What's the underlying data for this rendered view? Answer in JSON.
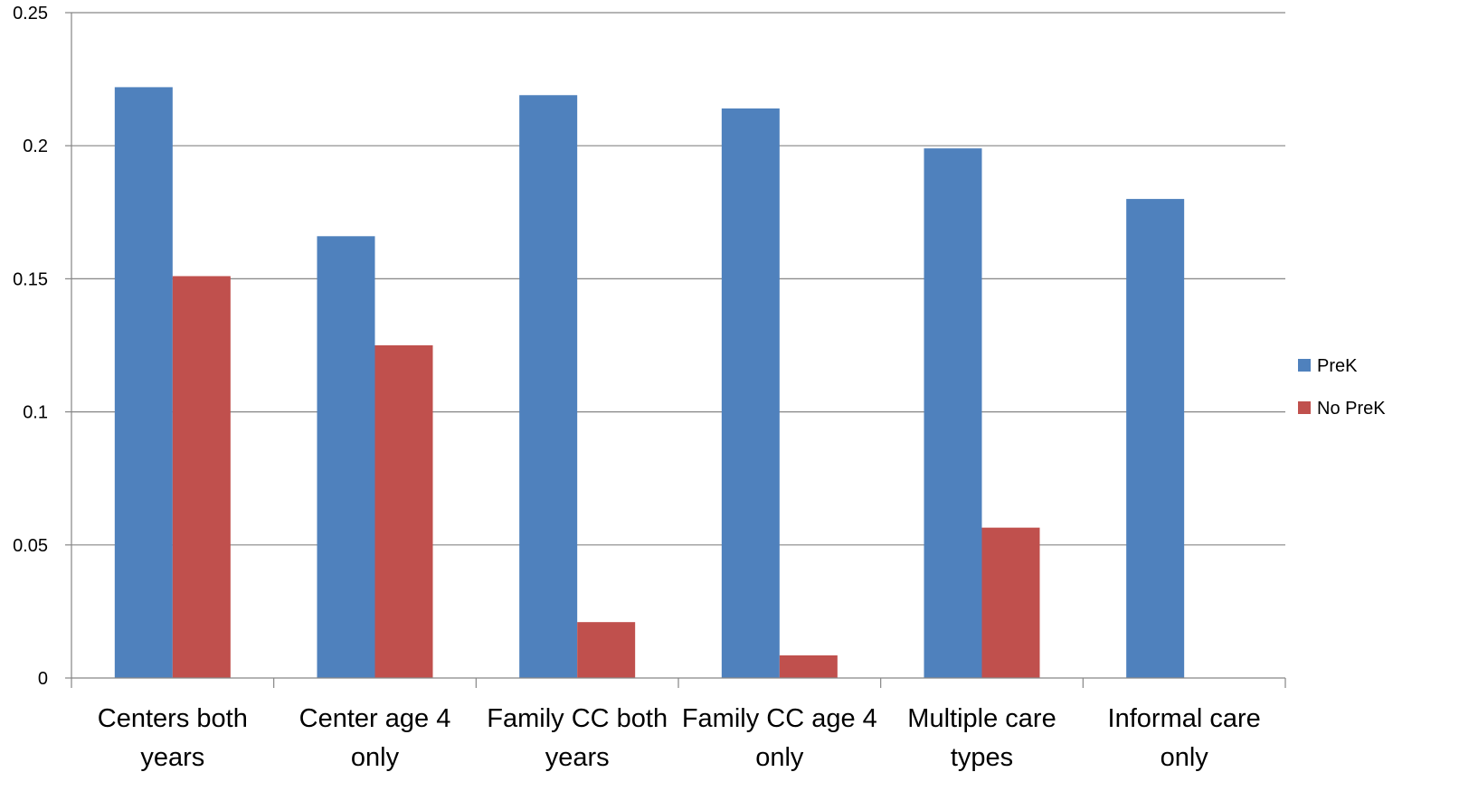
{
  "chart_data": {
    "type": "bar",
    "categories": [
      [
        "Centers both",
        "years"
      ],
      [
        "Center age 4",
        "only"
      ],
      [
        "Family CC both",
        "years"
      ],
      [
        "Family CC age 4",
        "only"
      ],
      [
        "Multiple care",
        "types"
      ],
      [
        "Informal care",
        "only"
      ]
    ],
    "series": [
      {
        "name": "PreK",
        "color": "#4F81BD",
        "values": [
          0.222,
          0.166,
          0.219,
          0.214,
          0.199,
          0.18
        ]
      },
      {
        "name": "No PreK",
        "color": "#C0504D",
        "values": [
          0.151,
          0.125,
          0.021,
          0.0085,
          0.0565,
          0
        ]
      }
    ],
    "ylim": [
      0,
      0.25
    ],
    "yticks": [
      "0",
      "0.05",
      "0.1",
      "0.15",
      "0.2",
      "0.25"
    ],
    "grid": true,
    "legend": "right"
  }
}
